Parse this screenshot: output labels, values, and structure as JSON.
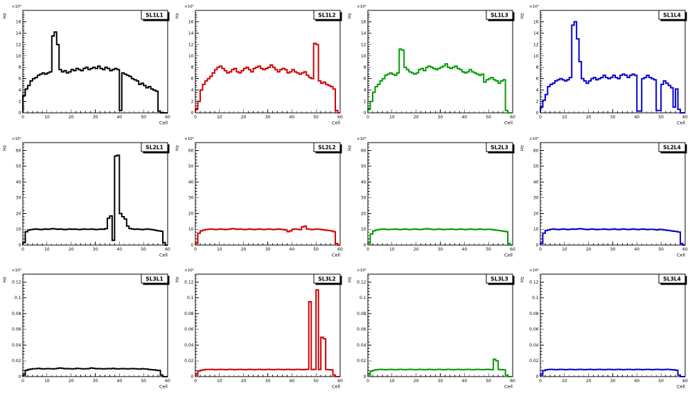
{
  "page": {
    "background": "#ffffff",
    "grid": {
      "rows": 3,
      "cols": 4
    }
  },
  "chart_data": [
    {
      "type": "histogram-step",
      "title": "SL1L1",
      "color": "#000000",
      "xlabel": "Cell",
      "ylabel": "Hz",
      "y_scale_label": "×10³",
      "xlim": [
        0,
        60
      ],
      "ylim": [
        0,
        18
      ],
      "xticks": [
        0,
        10,
        20,
        30,
        40,
        50,
        60
      ],
      "x_minor_step": 2,
      "yticks": [
        0,
        2,
        4,
        6,
        8,
        10,
        12,
        14,
        16
      ],
      "ytick_labels": [
        "0",
        "2",
        "4",
        "6",
        "8",
        "10",
        "12",
        "14",
        "16"
      ],
      "y_minor_step": 0.4,
      "values": [
        3.0,
        4.2,
        4.8,
        5.6,
        6.0,
        6.2,
        6.6,
        6.8,
        7.0,
        6.8,
        7.0,
        7.2,
        13.5,
        14.2,
        12.0,
        7.6,
        7.2,
        7.4,
        7.0,
        7.2,
        7.6,
        7.4,
        7.8,
        7.6,
        7.4,
        7.8,
        8.0,
        7.6,
        7.8,
        8.0,
        7.8,
        8.2,
        7.8,
        7.6,
        8.0,
        7.8,
        7.4,
        7.6,
        7.8,
        7.6,
        0.4,
        7.0,
        6.8,
        6.6,
        6.4,
        6.0,
        5.8,
        5.6,
        5.0,
        5.2,
        4.8,
        4.4,
        4.6,
        4.2,
        4.0,
        3.8,
        0.3,
        0,
        0,
        0
      ]
    },
    {
      "type": "histogram-step",
      "title": "SL1L2",
      "color": "#cc0000",
      "xlabel": "Cell",
      "ylabel": "Hz",
      "y_scale_label": "×10³",
      "xlim": [
        0,
        60
      ],
      "ylim": [
        0,
        18
      ],
      "xticks": [
        0,
        10,
        20,
        30,
        40,
        50,
        60
      ],
      "x_minor_step": 2,
      "yticks": [
        0,
        2,
        4,
        6,
        8,
        10,
        12,
        14,
        16
      ],
      "ytick_labels": [
        "0",
        "2",
        "4",
        "6",
        "8",
        "10",
        "12",
        "14",
        "16"
      ],
      "y_minor_step": 0.4,
      "values": [
        0.6,
        2.0,
        4.0,
        5.0,
        5.6,
        6.0,
        6.4,
        7.0,
        7.6,
        8.0,
        8.2,
        7.8,
        7.4,
        7.0,
        7.2,
        7.6,
        7.8,
        7.2,
        7.0,
        7.4,
        7.8,
        8.0,
        7.6,
        7.2,
        7.8,
        8.0,
        8.2,
        7.8,
        7.6,
        7.8,
        8.0,
        8.4,
        8.0,
        7.6,
        7.2,
        7.6,
        7.8,
        7.6,
        7.0,
        7.2,
        7.6,
        7.2,
        7.0,
        6.8,
        7.0,
        7.2,
        6.6,
        6.2,
        6.0,
        12.2,
        12.0,
        5.6,
        5.2,
        5.4,
        5.0,
        4.8,
        4.6,
        4.2,
        0.4,
        0
      ]
    },
    {
      "type": "histogram-step",
      "title": "SL1L3",
      "color": "#009900",
      "xlabel": "Cell",
      "ylabel": "Hz",
      "y_scale_label": "×10³",
      "xlim": [
        0,
        60
      ],
      "ylim": [
        0,
        18
      ],
      "xticks": [
        0,
        10,
        20,
        30,
        40,
        50,
        60
      ],
      "x_minor_step": 2,
      "yticks": [
        0,
        2,
        4,
        6,
        8,
        10,
        12,
        14,
        16
      ],
      "ytick_labels": [
        "0",
        "2",
        "4",
        "6",
        "8",
        "10",
        "12",
        "14",
        "16"
      ],
      "y_minor_step": 0.4,
      "values": [
        0.6,
        2.0,
        3.6,
        4.6,
        5.0,
        5.6,
        6.0,
        6.6,
        6.8,
        7.0,
        6.8,
        6.6,
        7.0,
        11.2,
        11.0,
        8.0,
        7.6,
        7.2,
        7.0,
        6.8,
        7.0,
        7.6,
        7.8,
        7.4,
        8.0,
        8.2,
        8.0,
        7.8,
        7.6,
        7.8,
        8.0,
        8.2,
        8.6,
        8.0,
        7.8,
        8.0,
        8.2,
        7.8,
        7.6,
        7.2,
        7.0,
        7.2,
        7.6,
        7.2,
        7.0,
        6.8,
        6.6,
        6.8,
        5.4,
        5.8,
        6.0,
        6.2,
        5.8,
        5.6,
        5.2,
        5.6,
        5.8,
        0.4,
        0,
        0
      ]
    },
    {
      "type": "histogram-step",
      "title": "SL1L4",
      "color": "#0000cc",
      "xlabel": "Cell",
      "ylabel": "Hz",
      "y_scale_label": "×10³",
      "xlim": [
        0,
        60
      ],
      "ylim": [
        0,
        18
      ],
      "xticks": [
        0,
        10,
        20,
        30,
        40,
        50,
        60
      ],
      "x_minor_step": 2,
      "yticks": [
        0,
        2,
        4,
        6,
        8,
        10,
        12,
        14,
        16
      ],
      "ytick_labels": [
        "0",
        "2",
        "4",
        "6",
        "8",
        "10",
        "12",
        "14",
        "16"
      ],
      "y_minor_step": 0.4,
      "values": [
        1.0,
        2.2,
        3.2,
        4.6,
        5.0,
        5.2,
        5.6,
        5.8,
        6.0,
        5.8,
        5.6,
        5.8,
        6.2,
        15.4,
        16.0,
        13.0,
        9.0,
        6.0,
        5.6,
        5.2,
        5.6,
        6.0,
        6.2,
        5.8,
        6.0,
        6.2,
        6.6,
        6.2,
        6.0,
        6.2,
        6.6,
        6.2,
        6.0,
        6.6,
        6.8,
        6.6,
        6.2,
        6.6,
        6.8,
        6.6,
        0.3,
        0.3,
        6.0,
        6.2,
        6.6,
        6.2,
        6.0,
        5.8,
        0.4,
        0.4,
        5.0,
        5.6,
        5.2,
        4.8,
        4.4,
        1.0,
        4.2,
        0.6,
        0,
        0
      ]
    },
    {
      "type": "histogram-step",
      "title": "SL2L1",
      "color": "#000000",
      "xlabel": "Cell",
      "ylabel": "Hz",
      "y_scale_label": "×10³",
      "xlim": [
        0,
        60
      ],
      "ylim": [
        0,
        65
      ],
      "xticks": [
        0,
        10,
        20,
        30,
        40,
        50,
        60
      ],
      "x_minor_step": 2,
      "yticks": [
        0,
        10,
        20,
        30,
        40,
        50,
        60
      ],
      "ytick_labels": [
        "0",
        "10",
        "20",
        "30",
        "40",
        "50",
        "60"
      ],
      "y_minor_step": 2,
      "values": [
        1.5,
        8.5,
        9.5,
        9.8,
        10.0,
        10.2,
        10.0,
        9.8,
        10.0,
        10.2,
        10.0,
        10.2,
        10.4,
        10.2,
        10.0,
        10.2,
        10.0,
        9.8,
        10.0,
        10.2,
        10.0,
        10.2,
        10.0,
        9.8,
        10.0,
        10.2,
        10.0,
        10.0,
        10.2,
        10.0,
        9.8,
        10.0,
        10.2,
        10.0,
        10.4,
        17.0,
        18.5,
        3.0,
        56.5,
        57.0,
        20.0,
        18.0,
        16.5,
        12.0,
        10.5,
        10.2,
        10.0,
        10.2,
        10.0,
        9.8,
        10.0,
        10.2,
        10.0,
        9.8,
        9.6,
        9.2,
        9.0,
        8.8,
        1.5,
        0
      ]
    },
    {
      "type": "histogram-step",
      "title": "SL2L2",
      "color": "#cc0000",
      "xlabel": "Cell",
      "ylabel": "Hz",
      "y_scale_label": "×10³",
      "xlim": [
        0,
        60
      ],
      "ylim": [
        0,
        65
      ],
      "xticks": [
        0,
        10,
        20,
        30,
        40,
        50,
        60
      ],
      "x_minor_step": 2,
      "yticks": [
        0,
        10,
        20,
        30,
        40,
        50,
        60
      ],
      "ytick_labels": [
        "0",
        "10",
        "20",
        "30",
        "40",
        "50",
        "60"
      ],
      "y_minor_step": 2,
      "values": [
        1.0,
        7.5,
        9.0,
        9.5,
        9.8,
        10.0,
        10.2,
        10.0,
        9.8,
        10.0,
        10.2,
        10.0,
        9.8,
        10.0,
        10.2,
        10.4,
        10.2,
        10.0,
        10.2,
        10.0,
        9.8,
        10.0,
        10.2,
        10.0,
        9.8,
        10.0,
        10.2,
        10.0,
        9.8,
        10.0,
        10.2,
        10.0,
        9.8,
        10.0,
        10.2,
        10.0,
        9.8,
        9.6,
        8.5,
        9.0,
        10.0,
        10.2,
        10.0,
        9.8,
        11.5,
        12.0,
        10.2,
        10.0,
        9.8,
        10.0,
        10.2,
        10.0,
        9.8,
        9.6,
        9.4,
        9.2,
        9.0,
        8.5,
        1.0,
        0
      ]
    },
    {
      "type": "histogram-step",
      "title": "SL2L3",
      "color": "#009900",
      "xlabel": "Cell",
      "ylabel": "Hz",
      "y_scale_label": "×10³",
      "xlim": [
        0,
        60
      ],
      "ylim": [
        0,
        65
      ],
      "xticks": [
        0,
        10,
        20,
        30,
        40,
        50,
        60
      ],
      "x_minor_step": 2,
      "yticks": [
        0,
        10,
        20,
        30,
        40,
        50,
        60
      ],
      "ytick_labels": [
        "0",
        "10",
        "20",
        "30",
        "40",
        "50",
        "60"
      ],
      "y_minor_step": 2,
      "values": [
        1.0,
        7.0,
        9.0,
        9.5,
        9.8,
        10.0,
        10.2,
        10.0,
        9.8,
        10.0,
        10.0,
        10.2,
        10.0,
        9.8,
        10.0,
        10.2,
        10.0,
        9.8,
        10.0,
        10.2,
        10.0,
        9.8,
        10.0,
        10.2,
        10.4,
        10.2,
        10.0,
        9.8,
        10.0,
        10.2,
        10.0,
        9.8,
        10.0,
        10.0,
        10.2,
        10.0,
        9.8,
        10.0,
        10.2,
        10.0,
        9.8,
        10.0,
        10.2,
        10.0,
        9.8,
        10.0,
        10.2,
        10.0,
        9.8,
        10.0,
        10.0,
        9.8,
        9.6,
        9.4,
        9.2,
        9.0,
        8.8,
        8.5,
        1.0,
        0
      ]
    },
    {
      "type": "histogram-step",
      "title": "SL2L4",
      "color": "#0000cc",
      "xlabel": "Cell",
      "ylabel": "Hz",
      "y_scale_label": "×10³",
      "xlim": [
        0,
        60
      ],
      "ylim": [
        0,
        65
      ],
      "xticks": [
        0,
        10,
        20,
        30,
        40,
        50,
        60
      ],
      "x_minor_step": 2,
      "yticks": [
        0,
        10,
        20,
        30,
        40,
        50,
        60
      ],
      "ytick_labels": [
        "0",
        "10",
        "20",
        "30",
        "40",
        "50",
        "60"
      ],
      "y_minor_step": 2,
      "values": [
        1.0,
        7.5,
        9.2,
        9.6,
        10.0,
        10.2,
        10.0,
        9.8,
        10.0,
        10.2,
        10.0,
        9.8,
        10.0,
        10.2,
        10.0,
        10.2,
        10.4,
        10.2,
        10.0,
        9.8,
        10.0,
        10.2,
        10.0,
        9.8,
        10.0,
        10.0,
        10.2,
        10.0,
        9.8,
        10.0,
        10.2,
        10.0,
        9.8,
        10.0,
        10.2,
        10.0,
        9.8,
        10.0,
        10.2,
        10.0,
        9.8,
        10.0,
        10.2,
        10.0,
        9.8,
        10.0,
        10.0,
        9.8,
        9.6,
        10.0,
        9.8,
        9.6,
        9.4,
        9.2,
        9.0,
        8.8,
        8.6,
        8.2,
        1.0,
        0
      ]
    },
    {
      "type": "histogram-step",
      "title": "SL3L1",
      "color": "#000000",
      "xlabel": "Cell",
      "ylabel": "Hz",
      "y_scale_label": "×10⁶",
      "xlim": [
        0,
        60
      ],
      "ylim": [
        0,
        0.13
      ],
      "xticks": [
        0,
        10,
        20,
        30,
        40,
        50,
        60
      ],
      "x_minor_step": 2,
      "yticks": [
        0,
        0.02,
        0.04,
        0.06,
        0.08,
        0.1,
        0.12
      ],
      "ytick_labels": [
        "0",
        "0.02",
        "0.04",
        "0.06",
        "0.08",
        "0.1",
        "0.12"
      ],
      "y_minor_step": 0.004,
      "values": [
        0.002,
        0.008,
        0.009,
        0.0095,
        0.01,
        0.01,
        0.0105,
        0.01,
        0.0098,
        0.01,
        0.0102,
        0.01,
        0.0098,
        0.01,
        0.0105,
        0.011,
        0.0105,
        0.01,
        0.0102,
        0.01,
        0.0098,
        0.01,
        0.0105,
        0.0102,
        0.01,
        0.0098,
        0.01,
        0.0102,
        0.011,
        0.0105,
        0.01,
        0.0102,
        0.01,
        0.0098,
        0.01,
        0.0102,
        0.01,
        0.0105,
        0.01,
        0.0098,
        0.01,
        0.0102,
        0.01,
        0.0098,
        0.01,
        0.0102,
        0.01,
        0.0098,
        0.0095,
        0.01,
        0.0098,
        0.0095,
        0.009,
        0.0088,
        0.0085,
        0.008,
        0.0078,
        0.002,
        0,
        0
      ]
    },
    {
      "type": "histogram-step",
      "title": "SL3L2",
      "color": "#cc0000",
      "xlabel": "Cell",
      "ylabel": "Hz",
      "y_scale_label": "×10⁶",
      "xlim": [
        0,
        60
      ],
      "ylim": [
        0,
        0.13
      ],
      "xticks": [
        0,
        10,
        20,
        30,
        40,
        50,
        60
      ],
      "x_minor_step": 2,
      "yticks": [
        0,
        0.02,
        0.04,
        0.06,
        0.08,
        0.1,
        0.12
      ],
      "ytick_labels": [
        "0",
        "0.02",
        "0.04",
        "0.06",
        "0.08",
        "0.1",
        "0.12"
      ],
      "y_minor_step": 0.004,
      "values": [
        0.002,
        0.007,
        0.008,
        0.0085,
        0.009,
        0.009,
        0.0092,
        0.009,
        0.0088,
        0.009,
        0.0092,
        0.009,
        0.0088,
        0.009,
        0.0092,
        0.009,
        0.0088,
        0.009,
        0.0092,
        0.009,
        0.0088,
        0.009,
        0.0092,
        0.009,
        0.0088,
        0.009,
        0.0092,
        0.009,
        0.0088,
        0.009,
        0.0092,
        0.009,
        0.0088,
        0.009,
        0.0092,
        0.009,
        0.0088,
        0.009,
        0.0092,
        0.009,
        0.0088,
        0.009,
        0.0092,
        0.009,
        0.0088,
        0.009,
        0.0092,
        0.095,
        0.009,
        0.0092,
        0.11,
        0.009,
        0.05,
        0.048,
        0.009,
        0.0088,
        0.0085,
        0.002,
        0,
        0
      ]
    },
    {
      "type": "histogram-step",
      "title": "SL3L3",
      "color": "#009900",
      "xlabel": "Cell",
      "ylabel": "Hz",
      "y_scale_label": "×10⁶",
      "xlim": [
        0,
        60
      ],
      "ylim": [
        0,
        0.13
      ],
      "xticks": [
        0,
        10,
        20,
        30,
        40,
        50,
        60
      ],
      "x_minor_step": 2,
      "yticks": [
        0,
        0.02,
        0.04,
        0.06,
        0.08,
        0.1,
        0.12
      ],
      "ytick_labels": [
        "0",
        "0.02",
        "0.04",
        "0.06",
        "0.08",
        "0.1",
        "0.12"
      ],
      "y_minor_step": 0.004,
      "values": [
        0.002,
        0.007,
        0.008,
        0.0085,
        0.009,
        0.0092,
        0.009,
        0.0088,
        0.009,
        0.0092,
        0.009,
        0.0088,
        0.009,
        0.0092,
        0.009,
        0.0088,
        0.009,
        0.0092,
        0.009,
        0.0088,
        0.009,
        0.0092,
        0.009,
        0.0088,
        0.009,
        0.0092,
        0.009,
        0.0088,
        0.009,
        0.0092,
        0.009,
        0.0088,
        0.009,
        0.0092,
        0.009,
        0.0088,
        0.009,
        0.0092,
        0.009,
        0.0088,
        0.009,
        0.0092,
        0.009,
        0.0088,
        0.009,
        0.0092,
        0.009,
        0.0088,
        0.009,
        0.0092,
        0.009,
        0.0088,
        0.022,
        0.02,
        0.009,
        0.0088,
        0.0085,
        0.002,
        0,
        0
      ]
    },
    {
      "type": "histogram-step",
      "title": "SL3L4",
      "color": "#0000cc",
      "xlabel": "Cell",
      "ylabel": "Hz",
      "y_scale_label": "×10⁶",
      "xlim": [
        0,
        60
      ],
      "ylim": [
        0,
        0.13
      ],
      "xticks": [
        0,
        10,
        20,
        30,
        40,
        50,
        60
      ],
      "x_minor_step": 2,
      "yticks": [
        0,
        0.02,
        0.04,
        0.06,
        0.08,
        0.1,
        0.12
      ],
      "ytick_labels": [
        "0",
        "0.02",
        "0.04",
        "0.06",
        "0.08",
        "0.1",
        "0.12"
      ],
      "y_minor_step": 0.004,
      "values": [
        0.002,
        0.0075,
        0.0085,
        0.009,
        0.0092,
        0.009,
        0.0088,
        0.009,
        0.0092,
        0.009,
        0.0088,
        0.009,
        0.0092,
        0.009,
        0.0088,
        0.009,
        0.0092,
        0.009,
        0.0088,
        0.009,
        0.0092,
        0.009,
        0.0088,
        0.009,
        0.0092,
        0.009,
        0.0088,
        0.009,
        0.0092,
        0.009,
        0.0088,
        0.009,
        0.0092,
        0.009,
        0.0088,
        0.009,
        0.0092,
        0.009,
        0.0088,
        0.009,
        0.0092,
        0.009,
        0.0088,
        0.009,
        0.0092,
        0.009,
        0.0088,
        0.009,
        0.0092,
        0.009,
        0.0088,
        0.009,
        0.0092,
        0.009,
        0.0088,
        0.0085,
        0.008,
        0.002,
        0,
        0
      ]
    }
  ]
}
